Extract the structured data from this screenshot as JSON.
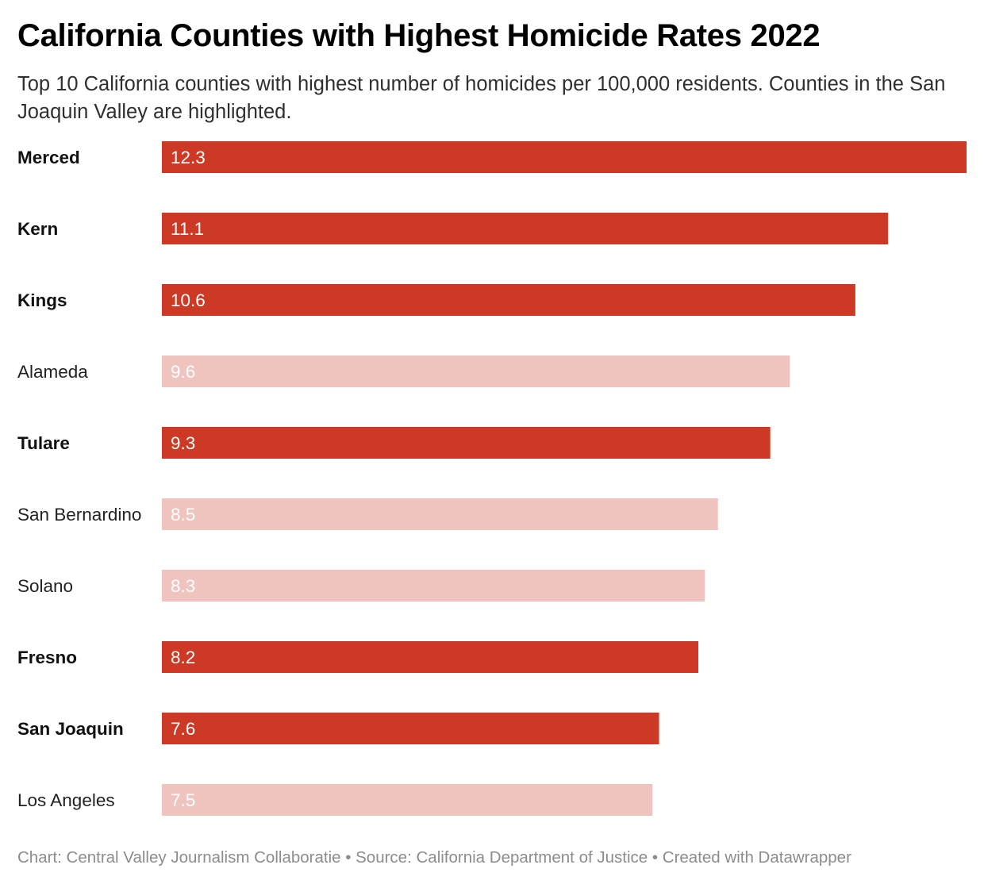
{
  "title": "California Counties with Highest Homicide Rates 2022",
  "subtitle": "Top 10 California counties with highest number of homicides per 100,000 residents. Counties in the San Joaquin Valley are highlighted.",
  "footer": {
    "chart_label": "Chart:",
    "chart_credit": "Central Valley Journalism Collaboratie",
    "source_label": "Source:",
    "source_credit": "California Department of Justice",
    "created_with": "Created with Datawrapper",
    "separator": "•"
  },
  "colors": {
    "highlight": "#cc3a25",
    "muted": "#f0c4be",
    "label_text": "#222222"
  },
  "chart_data": {
    "type": "bar",
    "orientation": "horizontal",
    "categories": [
      "Merced",
      "Kern",
      "Kings",
      "Alameda",
      "Tulare",
      "San Bernardino",
      "Solano",
      "Fresno",
      "San Joaquin",
      "Los Angeles"
    ],
    "values": [
      12.3,
      11.1,
      10.6,
      9.6,
      9.3,
      8.5,
      8.3,
      8.2,
      7.6,
      7.5
    ],
    "value_labels": [
      "12.3",
      "11.1",
      "10.6",
      "9.6",
      "9.3",
      "8.5",
      "8.3",
      "8.2",
      "7.6",
      "7.5"
    ],
    "highlighted": [
      true,
      true,
      true,
      false,
      true,
      false,
      false,
      true,
      true,
      false
    ],
    "xlim": [
      0,
      12.3
    ],
    "grid": false,
    "legend": "none"
  }
}
